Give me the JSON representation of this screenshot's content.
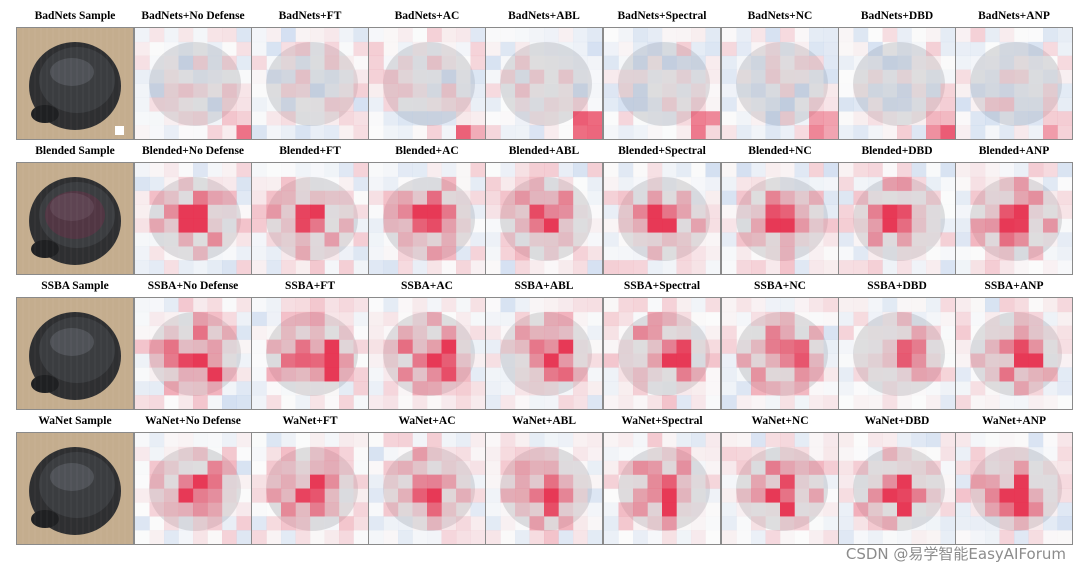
{
  "figure": {
    "rows": [
      {
        "attack": "BadNets",
        "cells": [
          {
            "label": "BadNets Sample",
            "kind": "sample"
          },
          {
            "label": "BadNets+No Defense",
            "kind": "map"
          },
          {
            "label": "BadNets+FT",
            "kind": "map"
          },
          {
            "label": "BadNets+AC",
            "kind": "map"
          },
          {
            "label": "BadNets+ABL",
            "kind": "map"
          },
          {
            "label": "BadNets+Spectral",
            "kind": "map"
          },
          {
            "label": "BadNets+NC",
            "kind": "map"
          },
          {
            "label": "BadNets+DBD",
            "kind": "map"
          },
          {
            "label": "BadNets+ANP",
            "kind": "map"
          }
        ]
      },
      {
        "attack": "Blended",
        "cells": [
          {
            "label": "Blended Sample",
            "kind": "sample"
          },
          {
            "label": "Blended+No Defense",
            "kind": "map"
          },
          {
            "label": "Blended+FT",
            "kind": "map"
          },
          {
            "label": "Blended+AC",
            "kind": "map"
          },
          {
            "label": "Blended+ABL",
            "kind": "map"
          },
          {
            "label": "Blended+Spectral",
            "kind": "map"
          },
          {
            "label": "Blended+NC",
            "kind": "map"
          },
          {
            "label": "Blended+DBD",
            "kind": "map"
          },
          {
            "label": "Blended+ANP",
            "kind": "map"
          }
        ]
      },
      {
        "attack": "SSBA",
        "cells": [
          {
            "label": "SSBA Sample",
            "kind": "sample"
          },
          {
            "label": "SSBA+No Defense",
            "kind": "map"
          },
          {
            "label": "SSBA+FT",
            "kind": "map"
          },
          {
            "label": "SSBA+AC",
            "kind": "map"
          },
          {
            "label": "SSBA+ABL",
            "kind": "map"
          },
          {
            "label": "SSBA+Spectral",
            "kind": "map"
          },
          {
            "label": "SSBA+NC",
            "kind": "map"
          },
          {
            "label": "SSBA+DBD",
            "kind": "map"
          },
          {
            "label": "SSBA+ANP",
            "kind": "map"
          }
        ]
      },
      {
        "attack": "WaNet",
        "cells": [
          {
            "label": "WaNet Sample",
            "kind": "sample"
          },
          {
            "label": "WaNet+No Defense",
            "kind": "map"
          },
          {
            "label": "WaNet+FT",
            "kind": "map"
          },
          {
            "label": "WaNet+AC",
            "kind": "map"
          },
          {
            "label": "WaNet+ABL",
            "kind": "map"
          },
          {
            "label": "WaNet+Spectral",
            "kind": "map"
          },
          {
            "label": "WaNet+NC",
            "kind": "map"
          },
          {
            "label": "WaNet+DBD",
            "kind": "map"
          },
          {
            "label": "WaNet+ANP",
            "kind": "map"
          }
        ]
      }
    ],
    "colors": {
      "positive": "#e8304f",
      "negative": "#3d7bd4",
      "neutral": "#ececec",
      "shell": "#3b3d40",
      "background": "#c4ad8e"
    }
  },
  "watermark": "CSDN @易学智能EasyAIForum"
}
